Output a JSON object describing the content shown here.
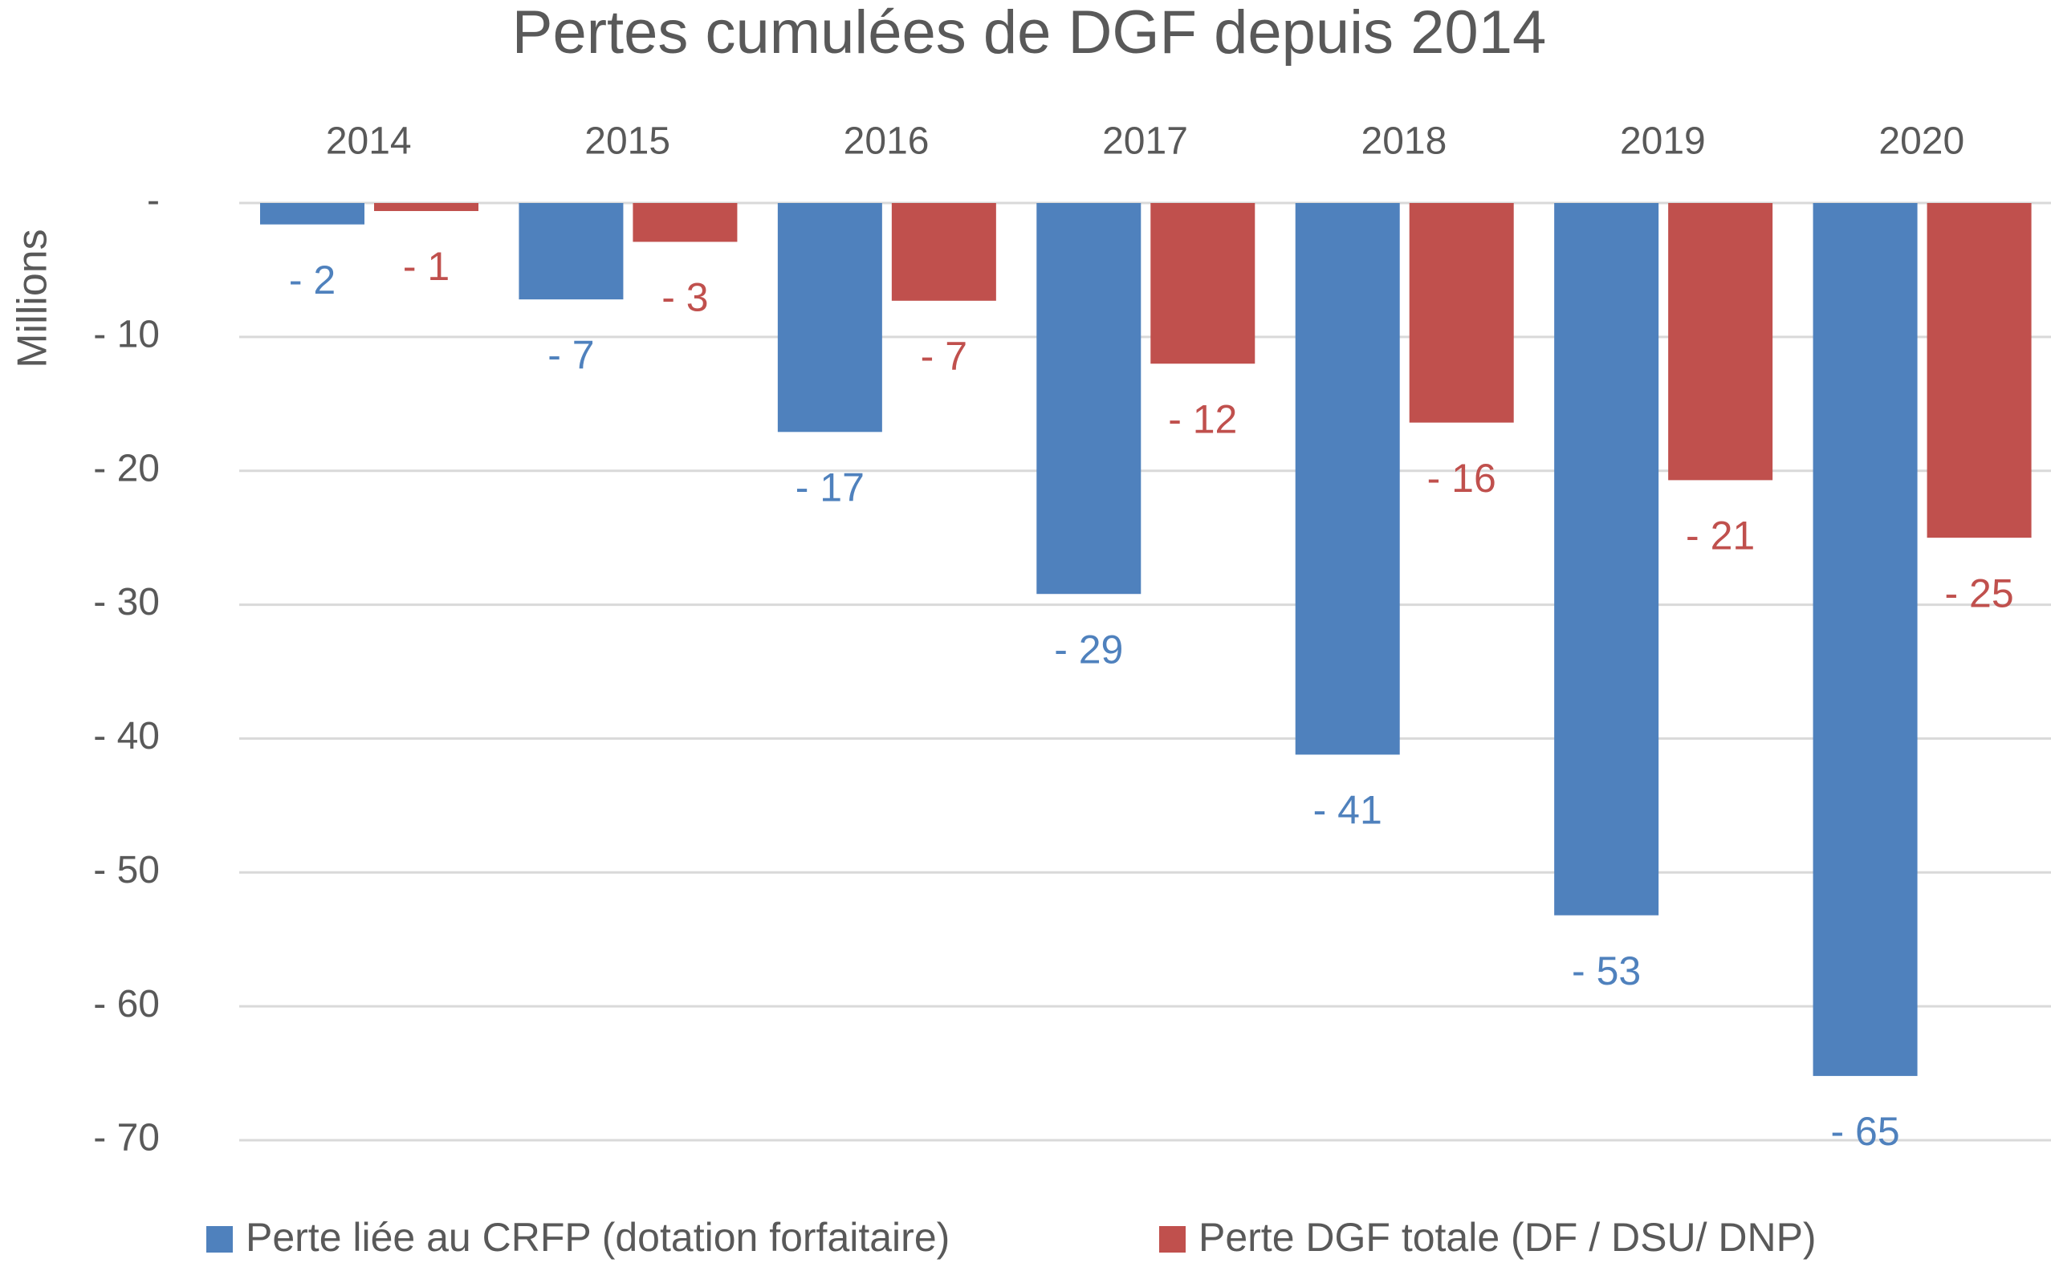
{
  "chart_data": {
    "type": "bar",
    "title": "Pertes cumulées de DGF depuis 2014",
    "y_label": "Millions",
    "categories": [
      "2014",
      "2015",
      "2016",
      "2017",
      "2018",
      "2019",
      "2020"
    ],
    "series": [
      {
        "name": "Perte liée au CRFP (dotation forfaitaire)",
        "color": "#4f81bd",
        "values": [
          -1.6,
          -7.2,
          -17.1,
          -29.2,
          -41.2,
          -53.2,
          -65.2
        ],
        "value_labels": [
          "- 2",
          "- 7",
          "- 17",
          "- 29",
          "- 41",
          "- 53",
          "- 65"
        ]
      },
      {
        "name": "Perte DGF totale (DF / DSU/ DNP)",
        "color": "#c0504d",
        "values": [
          -0.6,
          -2.9,
          -7.3,
          -12,
          -16.4,
          -20.7,
          -25
        ],
        "value_labels": [
          "- 1",
          "- 3",
          "- 7",
          "- 12",
          "- 16",
          "- 21",
          "- 25"
        ]
      }
    ],
    "ylim": [
      -70,
      0
    ],
    "yticks": [
      {
        "value": 0,
        "label": "-"
      },
      {
        "value": -10,
        "label": "- 10"
      },
      {
        "value": -20,
        "label": "- 20"
      },
      {
        "value": -30,
        "label": "- 30"
      },
      {
        "value": -40,
        "label": "- 40"
      },
      {
        "value": -50,
        "label": "- 50"
      },
      {
        "value": -60,
        "label": "- 60"
      },
      {
        "value": -70,
        "label": "- 70"
      }
    ],
    "grid": true,
    "legend": "bottom"
  }
}
